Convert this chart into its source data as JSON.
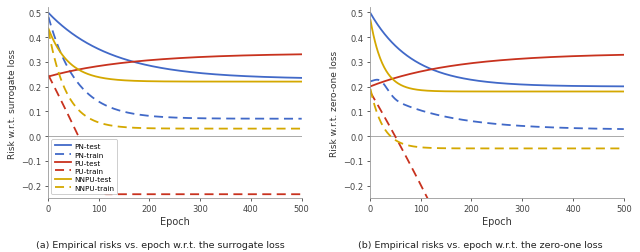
{
  "blue": "#4169c8",
  "red": "#c8321e",
  "yellow": "#d4a800",
  "xlabel": "Epoch",
  "ylabel_left": "Risk w.r.t. surrogate loss",
  "ylabel_right": "Risk w.r.t. zero-one loss",
  "caption_left": "(a) Empirical risks vs. epoch w.r.t. the surrogate loss",
  "caption_right": "(b) Empirical risks vs. epoch w.r.t. the zero-one loss",
  "xlim": [
    0,
    500
  ],
  "ylim": [
    -0.25,
    0.5
  ],
  "xticks": [
    0,
    100,
    200,
    300,
    400,
    500
  ],
  "yticks": [
    -0.2,
    -0.1,
    0,
    0.1,
    0.2,
    0.3,
    0.4,
    0.5
  ],
  "legend_labels": [
    "PN-test",
    "PN-train",
    "PU-test",
    "PU-train",
    "NNPU-test",
    "NNPU-train"
  ],
  "n_epochs": 500,
  "lw": 1.3
}
